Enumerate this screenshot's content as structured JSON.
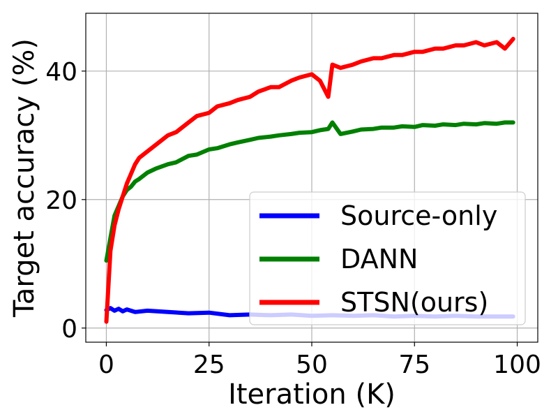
{
  "chart_data": {
    "type": "line",
    "title": "",
    "xlabel": "Iteration (K)",
    "ylabel": "Target accuracy (%)",
    "xlim": [
      -5,
      105
    ],
    "ylim": [
      -2.2,
      49
    ],
    "x_ticks": [
      0,
      25,
      50,
      75,
      100
    ],
    "x_tick_labels": [
      "0",
      "25",
      "50",
      "75",
      "100"
    ],
    "y_ticks": [
      0,
      20,
      40
    ],
    "y_tick_labels": [
      "0",
      "20",
      "40"
    ],
    "grid": true,
    "legend": {
      "position": "lower-right",
      "entries": [
        "Source-only",
        "DANN",
        "STSN(ours)"
      ]
    },
    "series": [
      {
        "name": "Source-only",
        "color": "#0000ff",
        "x": [
          0,
          1,
          2,
          3,
          4,
          5,
          7,
          10,
          15,
          20,
          25,
          30,
          35,
          40,
          45,
          50,
          55,
          60,
          65,
          70,
          75,
          80,
          85,
          90,
          95,
          99
        ],
        "y": [
          2.8,
          3.1,
          2.7,
          3.0,
          2.6,
          2.9,
          2.5,
          2.7,
          2.5,
          2.3,
          2.4,
          2.0,
          2.1,
          2.0,
          2.1,
          1.9,
          2.0,
          1.9,
          2.0,
          1.8,
          1.9,
          1.8,
          1.9,
          1.8,
          1.8,
          1.8
        ]
      },
      {
        "name": "DANN",
        "color": "#008000",
        "x": [
          0,
          1,
          2,
          3,
          4,
          5,
          6,
          7,
          8,
          10,
          12,
          15,
          17,
          20,
          22,
          25,
          27,
          30,
          32,
          35,
          37,
          40,
          42,
          45,
          47,
          50,
          52,
          54,
          55,
          57,
          60,
          62,
          65,
          67,
          70,
          72,
          75,
          77,
          80,
          82,
          85,
          87,
          90,
          92,
          95,
          97,
          99
        ],
        "y": [
          10.5,
          14.0,
          17.5,
          19.0,
          20.5,
          21.5,
          22.0,
          22.8,
          23.2,
          24.2,
          24.8,
          25.5,
          25.8,
          26.8,
          27.0,
          27.8,
          28.0,
          28.6,
          28.9,
          29.3,
          29.6,
          29.8,
          30.0,
          30.2,
          30.4,
          30.5,
          30.8,
          31.0,
          32.0,
          30.2,
          30.6,
          30.9,
          31.0,
          31.2,
          31.2,
          31.4,
          31.3,
          31.6,
          31.5,
          31.7,
          31.6,
          31.8,
          31.7,
          31.9,
          31.8,
          32.0,
          32.0
        ]
      },
      {
        "name": "STSN(ours)",
        "color": "#ff0000",
        "x": [
          0,
          1,
          2,
          3,
          4,
          5,
          6,
          7,
          8,
          10,
          12,
          14,
          15,
          17,
          20,
          22,
          25,
          27,
          30,
          32,
          35,
          37,
          40,
          42,
          45,
          47,
          50,
          52,
          54,
          55,
          57,
          60,
          62,
          65,
          67,
          70,
          72,
          75,
          77,
          80,
          82,
          85,
          87,
          90,
          92,
          95,
          97,
          99
        ],
        "y": [
          1.0,
          12.0,
          16.0,
          18.5,
          20.5,
          22.5,
          24.0,
          25.5,
          26.5,
          27.5,
          28.5,
          29.5,
          30.0,
          30.5,
          32.0,
          33.0,
          33.5,
          34.5,
          35.0,
          35.5,
          36.0,
          36.8,
          37.5,
          37.5,
          38.5,
          39.0,
          39.5,
          38.5,
          36.0,
          41.0,
          40.5,
          41.0,
          41.5,
          42.0,
          42.0,
          42.5,
          42.5,
          43.0,
          43.0,
          43.5,
          43.5,
          44.0,
          44.0,
          44.5,
          44.0,
          44.5,
          43.5,
          45.0
        ]
      }
    ]
  }
}
